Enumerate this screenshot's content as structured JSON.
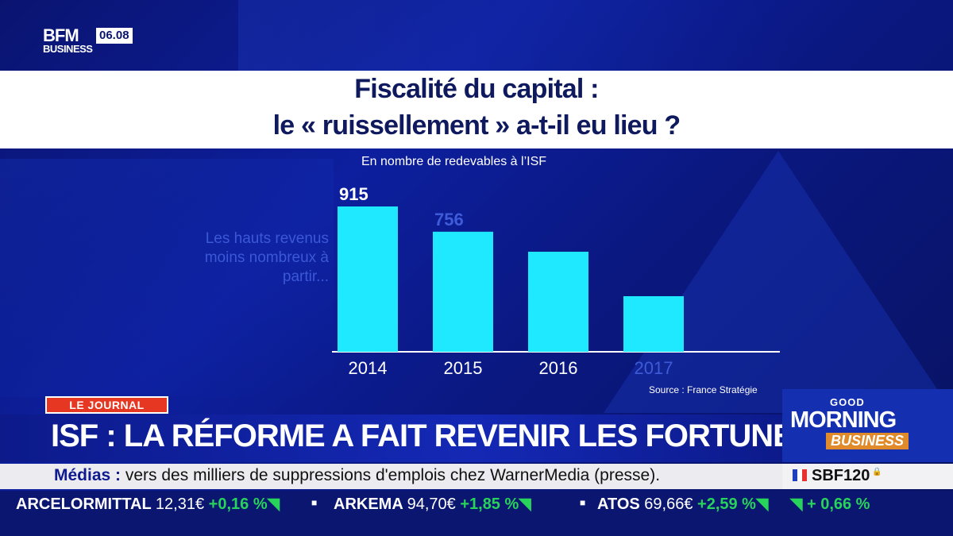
{
  "broadcast": {
    "logo_main": "BFM",
    "logo_sub": "BUSINESS",
    "clock": "06.08"
  },
  "title": {
    "line1": "Fiscalité du capital :",
    "line2": "le « ruissellement » a-t-il eu lieu ?"
  },
  "chart_data": {
    "type": "bar",
    "subtitle": "En nombre de redevables à l’ISF",
    "categories": [
      "2014",
      "2015",
      "2016",
      "2017"
    ],
    "values": [
      915,
      756,
      630,
      350
    ],
    "data_labels": [
      "915",
      "756",
      "",
      ""
    ],
    "ylim": [
      0,
      950
    ],
    "annotation": "Les hauts revenus moins nombreux à partir...",
    "source": "Source : France Stratégie",
    "bar_color": "#1fe9ff",
    "colors": {
      "active_label": "#ffffff",
      "faded_label": "#3e5bd8"
    }
  },
  "segment_badge": "LE JOURNAL",
  "headline": "ISF : LA RÉFORME A FAIT REVENIR LES FORTUNES",
  "show_badge": {
    "good": "GOOD",
    "morning": "MORNING",
    "business": "BUSINESS"
  },
  "news_ticker": {
    "label": "Médias :",
    "text": "vers des milliers de suppressions d'emplois chez WarnerMedia (presse)."
  },
  "index": {
    "name": "SBF120",
    "change": "+ 0,66 %",
    "change_icon": "triangle-down-right-icon",
    "flag_colors": [
      "#1f3fbf",
      "#ffffff",
      "#e8312f"
    ]
  },
  "stocks": [
    {
      "name": "ARCELORMITTAL",
      "price": "12,31€",
      "change": "+0,16 %"
    },
    {
      "name": "ARKEMA",
      "price": "94,70€",
      "change": "+1,85 %"
    },
    {
      "name": "ATOS",
      "price": "69,66€",
      "change": "+2,59 %"
    }
  ],
  "colors": {
    "positive": "#27d35a",
    "accent_red": "#e63722",
    "navy": "#0f1a5e"
  }
}
